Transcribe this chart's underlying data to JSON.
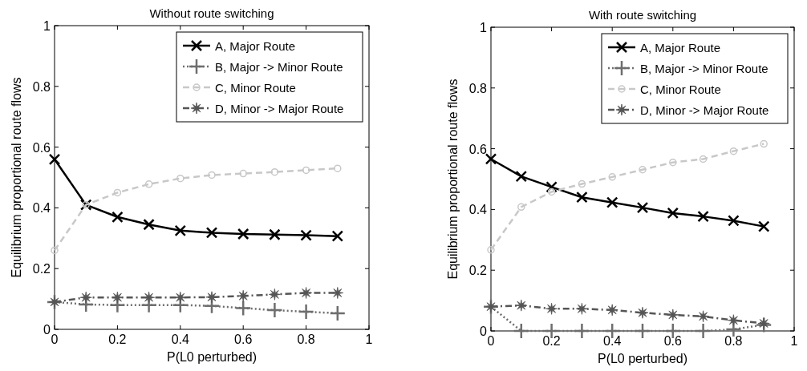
{
  "chart_data": [
    {
      "type": "line",
      "title": "Without route switching",
      "xlabel": "P(L0 perturbed)",
      "ylabel": "Equilibrium proportional route flows",
      "x": [
        0,
        0.1,
        0.2,
        0.3,
        0.4,
        0.5,
        0.6,
        0.7,
        0.8,
        0.9
      ],
      "xlim": [
        0,
        1
      ],
      "xticks": [
        0,
        0.2,
        0.4,
        0.6,
        0.8,
        1
      ],
      "ylim": [
        0,
        1
      ],
      "yticks": [
        0,
        0.2,
        0.4,
        0.6,
        0.8,
        1
      ],
      "grid": false,
      "legend": "top right",
      "series": [
        {
          "name": "A, Major Route",
          "color": "#000000",
          "marker": "x",
          "line_style": "solid",
          "values": [
            0.56,
            0.41,
            0.37,
            0.345,
            0.325,
            0.318,
            0.314,
            0.312,
            0.31,
            0.307
          ]
        },
        {
          "name": "B, Major -> Minor Route",
          "color": "#6e6e6e",
          "marker": "plus",
          "line_style": "dotted",
          "values": [
            0.09,
            0.082,
            0.08,
            0.08,
            0.08,
            0.077,
            0.07,
            0.063,
            0.058,
            0.053
          ]
        },
        {
          "name": "C, Minor Route",
          "color": "#c8c8c8",
          "marker": "circle",
          "line_style": "dashed",
          "values": [
            0.26,
            0.41,
            0.45,
            0.478,
            0.497,
            0.508,
            0.513,
            0.518,
            0.524,
            0.53
          ]
        },
        {
          "name": "D, Minor -> Major Route",
          "color": "#555555",
          "marker": "star",
          "line_style": "dashdot",
          "values": [
            0.09,
            0.105,
            0.105,
            0.105,
            0.105,
            0.106,
            0.11,
            0.115,
            0.12,
            0.12
          ]
        }
      ]
    },
    {
      "type": "line",
      "title": "With route switching",
      "xlabel": "P(L0 perturbed)",
      "ylabel": "Equilibrium proportional route flows",
      "x": [
        0,
        0.1,
        0.2,
        0.3,
        0.4,
        0.5,
        0.6,
        0.7,
        0.8,
        0.9
      ],
      "xlim": [
        0,
        1
      ],
      "xticks": [
        0,
        0.2,
        0.4,
        0.6,
        0.8,
        1
      ],
      "ylim": [
        0,
        1
      ],
      "yticks": [
        0,
        0.2,
        0.4,
        0.6,
        0.8,
        1
      ],
      "grid": false,
      "legend": "top right",
      "series": [
        {
          "name": "A, Major Route",
          "color": "#000000",
          "marker": "x",
          "line_style": "solid",
          "values": [
            0.566,
            0.509,
            0.474,
            0.44,
            0.423,
            0.406,
            0.388,
            0.377,
            0.363,
            0.344
          ]
        },
        {
          "name": "B, Major -> Minor Route",
          "color": "#6e6e6e",
          "marker": "plus",
          "line_style": "dotted",
          "values": [
            0.08,
            0,
            0,
            0,
            0,
            0,
            0,
            0,
            0.005,
            0.02
          ]
        },
        {
          "name": "C, Minor Route",
          "color": "#c8c8c8",
          "marker": "circle",
          "line_style": "dashed",
          "values": [
            0.267,
            0.408,
            0.458,
            0.484,
            0.507,
            0.531,
            0.555,
            0.566,
            0.592,
            0.616
          ]
        },
        {
          "name": "D, Minor -> Major Route",
          "color": "#555555",
          "marker": "star",
          "line_style": "dashdot",
          "values": [
            0.08,
            0.084,
            0.073,
            0.073,
            0.069,
            0.06,
            0.053,
            0.048,
            0.035,
            0.025
          ]
        }
      ]
    }
  ]
}
